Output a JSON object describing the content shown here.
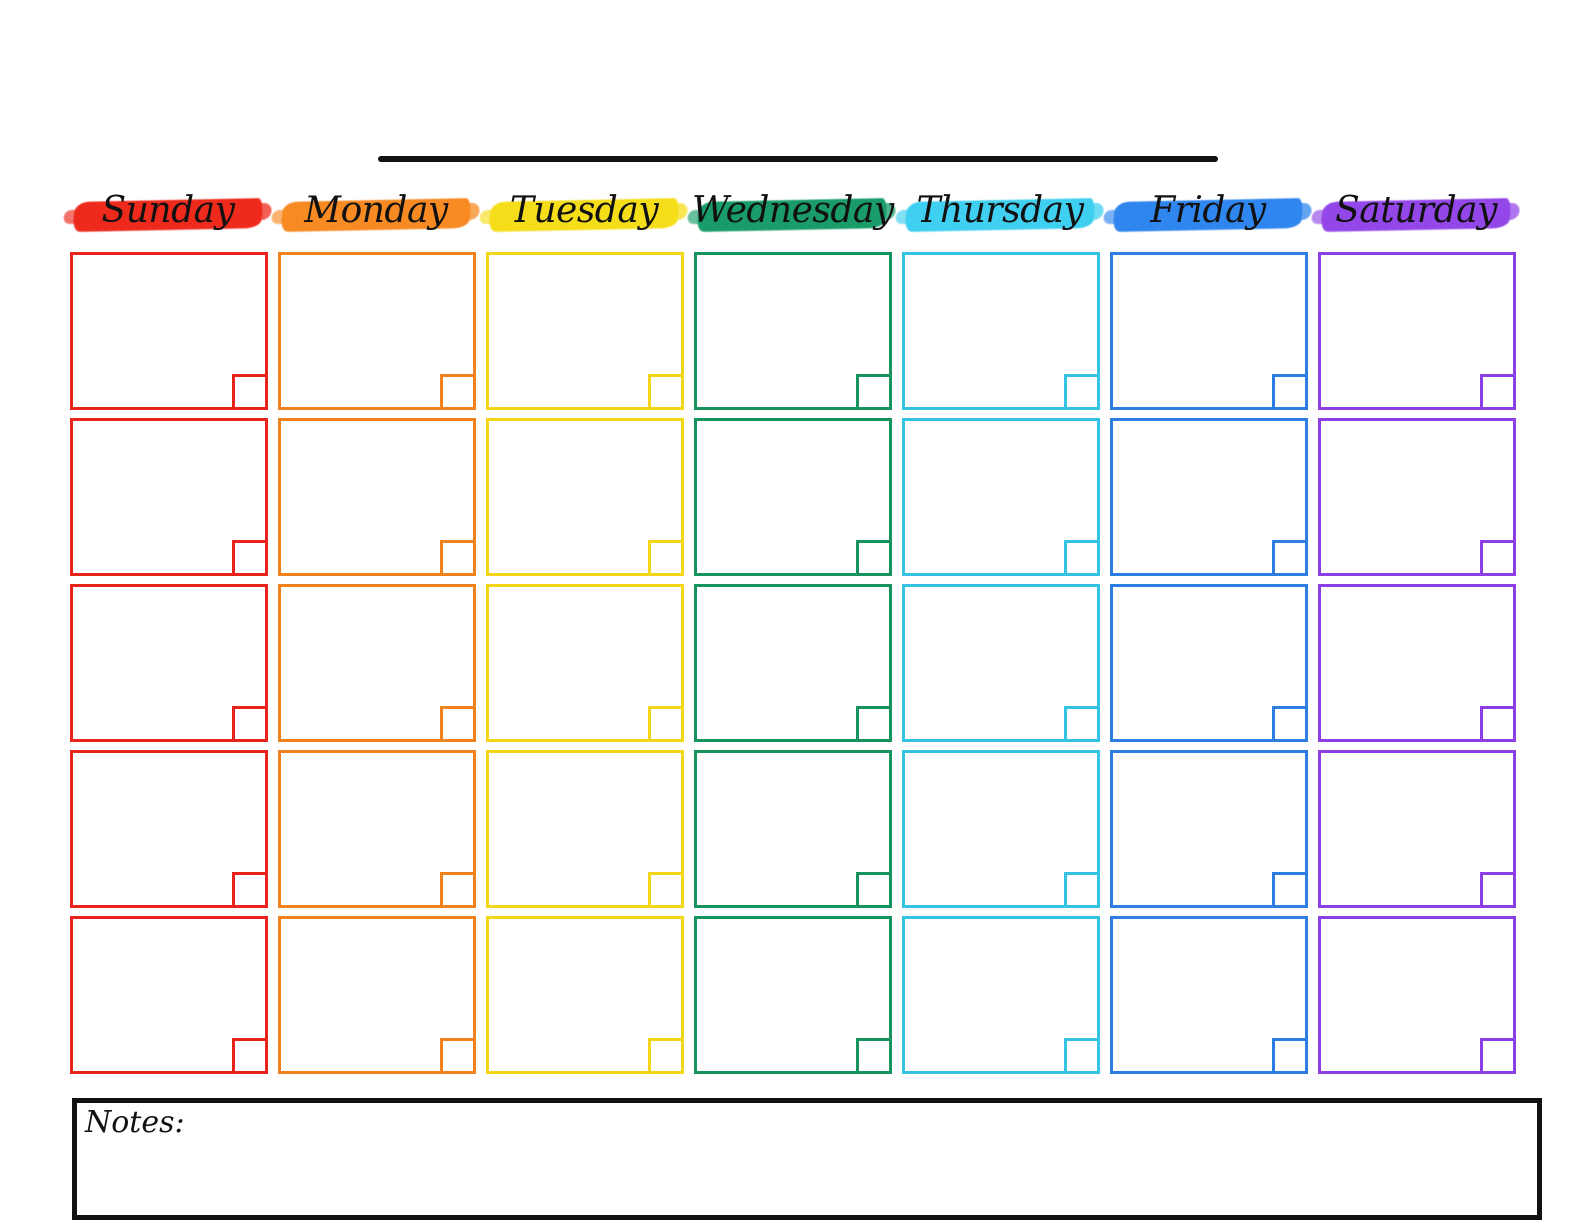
{
  "calendar": {
    "days": [
      {
        "label": "Sunday",
        "color": "#e8231b"
      },
      {
        "label": "Monday",
        "color": "#f0821e"
      },
      {
        "label": "Tuesday",
        "color": "#f4d619"
      },
      {
        "label": "Wednesday",
        "color": "#17935f"
      },
      {
        "label": "Thursday",
        "color": "#34c4e2"
      },
      {
        "label": "Friday",
        "color": "#2c7fe0"
      },
      {
        "label": "Saturday",
        "color": "#8c3fe4"
      }
    ],
    "weeks": 5,
    "brush_colors": [
      "#ee2a1c",
      "#f78a22",
      "#f6dd1a",
      "#1a9c6a",
      "#3fcff0",
      "#2f86ee",
      "#9447e8"
    ]
  },
  "notes": {
    "label": "Notes:"
  }
}
